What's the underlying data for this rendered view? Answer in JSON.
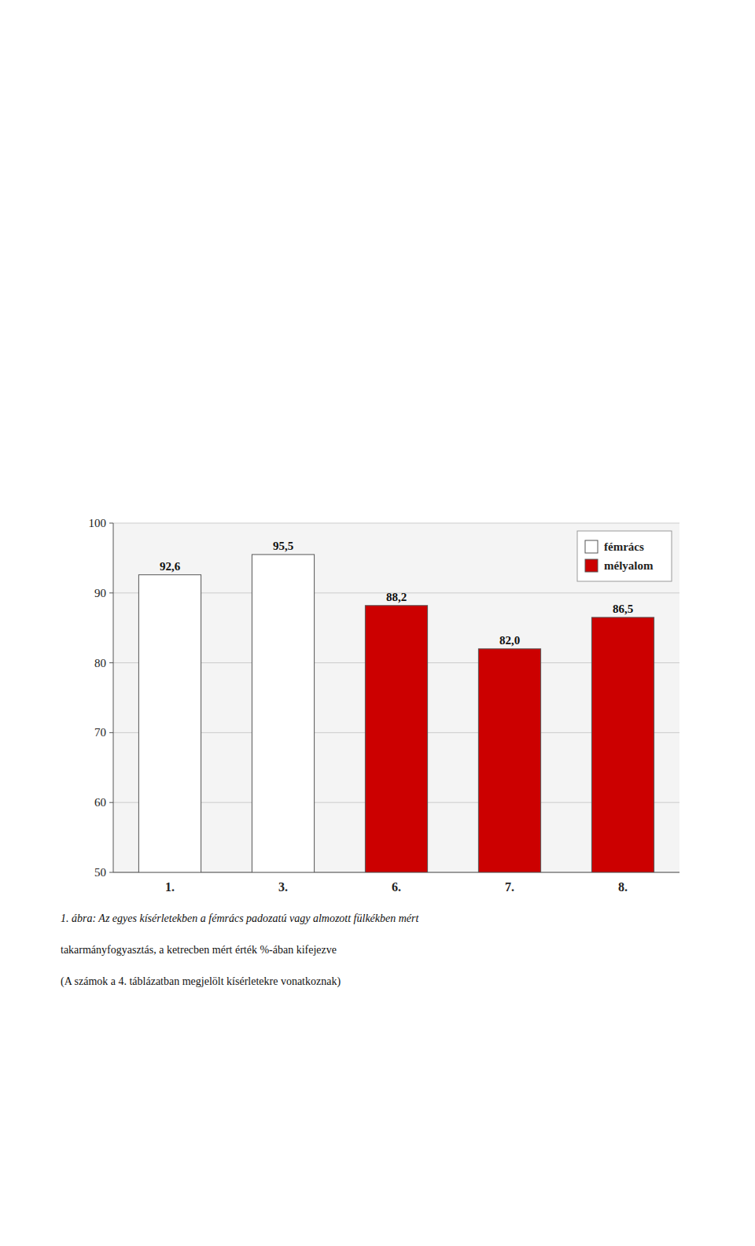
{
  "chart_data": {
    "type": "bar",
    "categories": [
      "1.",
      "3.",
      "6.",
      "7.",
      "8."
    ],
    "series": [
      {
        "name": "fémrács",
        "color": "#ffffff",
        "values": [
          92.6,
          95.5,
          null,
          null,
          null
        ],
        "value_labels": [
          "92,6",
          "95,5",
          null,
          null,
          null
        ]
      },
      {
        "name": "mélyalom",
        "color": "#cc0000",
        "values": [
          null,
          null,
          88.2,
          82.0,
          86.5
        ],
        "value_labels": [
          null,
          null,
          "88,2",
          "82,0",
          "86,5"
        ]
      }
    ],
    "stacked": true,
    "ylim": [
      50,
      100
    ],
    "yticks": [
      50,
      60,
      70,
      80,
      90,
      100
    ],
    "grid": true,
    "legend": "upper right",
    "data_labels": true,
    "annotations": [
      "1. ábra: Az egyes kísérletekben a fémrács padozatú vagy almozott fülkékben mért",
      "takarmányfogyasztás, a ketrecben mért érték %-ában kifejezve",
      "(A számok a 4. táblázatban megjelölt kísérletekre vonatkoznak)"
    ]
  }
}
